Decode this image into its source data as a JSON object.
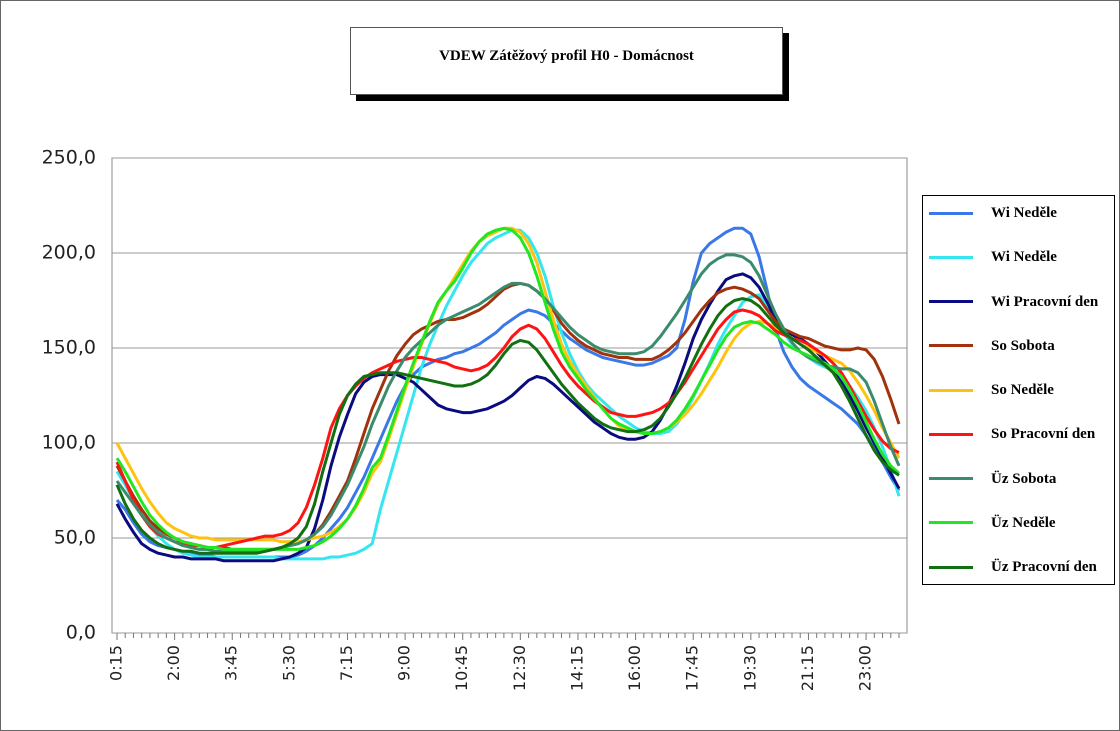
{
  "chart_data": {
    "type": "line",
    "title": "VDEW Zátěžový profil H0 - Domácnost",
    "categories": [
      "0:15",
      null,
      null,
      null,
      null,
      null,
      null,
      "2:00",
      null,
      null,
      null,
      null,
      null,
      null,
      "3:45",
      null,
      null,
      null,
      null,
      null,
      null,
      "5:30",
      null,
      null,
      null,
      null,
      null,
      null,
      "7:15",
      null,
      null,
      null,
      null,
      null,
      null,
      "9:00",
      null,
      null,
      null,
      null,
      null,
      null,
      "10:45",
      null,
      null,
      null,
      null,
      null,
      null,
      "12:30",
      null,
      null,
      null,
      null,
      null,
      null,
      "14:15",
      null,
      null,
      null,
      null,
      null,
      null,
      "16:00",
      null,
      null,
      null,
      null,
      null,
      null,
      "17:45",
      null,
      null,
      null,
      null,
      null,
      null,
      "19:30",
      null,
      null,
      null,
      null,
      null,
      null,
      "21:15",
      null,
      null,
      null,
      null,
      null,
      null,
      "23:00",
      null,
      null,
      null,
      null
    ],
    "ylim": [
      0,
      250
    ],
    "yticks": [
      {
        "value": 0,
        "label": "0,0"
      },
      {
        "value": 50,
        "label": "50,0"
      },
      {
        "value": 100,
        "label": "100,0"
      },
      {
        "value": 150,
        "label": "150,0"
      },
      {
        "value": 200,
        "label": "200,0"
      },
      {
        "value": 250,
        "label": "250,0"
      }
    ],
    "grid": true,
    "legend": "right",
    "series": [
      {
        "name": "Wi Neděle",
        "color": "#3b78e7",
        "values": [
          70,
          65,
          58,
          52,
          48,
          46,
          45,
          44,
          43,
          42,
          41,
          41,
          40,
          40,
          40,
          40,
          40,
          40,
          40,
          40,
          40,
          40,
          41,
          43,
          46,
          50,
          55,
          60,
          66,
          74,
          82,
          92,
          102,
          112,
          122,
          130,
          136,
          140,
          142,
          144,
          145,
          147,
          148,
          150,
          152,
          155,
          158,
          162,
          165,
          168,
          170,
          169,
          167,
          163,
          159,
          155,
          152,
          149,
          147,
          145,
          144,
          143,
          142,
          141,
          141,
          142,
          144,
          146,
          150,
          165,
          185,
          200,
          205,
          208,
          211,
          213,
          213,
          210,
          198,
          180,
          160,
          148,
          140,
          134,
          130,
          127,
          124,
          121,
          118,
          114,
          110,
          104,
          97,
          90,
          82,
          75
        ]
      },
      {
        "name": "Wi Neděle",
        "color": "#33e6ef",
        "values": [
          85,
          78,
          70,
          62,
          56,
          51,
          47,
          44,
          42,
          41,
          40,
          40,
          40,
          40,
          40,
          40,
          40,
          40,
          40,
          40,
          39,
          39,
          39,
          39,
          39,
          39,
          40,
          40,
          41,
          42,
          44,
          47,
          65,
          80,
          95,
          110,
          125,
          140,
          152,
          162,
          172,
          180,
          188,
          195,
          200,
          205,
          208,
          210,
          212,
          212,
          208,
          200,
          188,
          172,
          158,
          147,
          138,
          131,
          126,
          122,
          118,
          114,
          111,
          108,
          106,
          105,
          105,
          106,
          110,
          116,
          124,
          133,
          142,
          152,
          160,
          167,
          174,
          177,
          178,
          172,
          165,
          158,
          152,
          148,
          145,
          142,
          140,
          138,
          135,
          130,
          124,
          117,
          108,
          98,
          86,
          72
        ]
      },
      {
        "name": "Wi Pracovní den",
        "color": "#0b0b80",
        "values": [
          68,
          60,
          53,
          47,
          44,
          42,
          41,
          40,
          40,
          39,
          39,
          39,
          39,
          38,
          38,
          38,
          38,
          38,
          38,
          38,
          39,
          40,
          42,
          45,
          55,
          70,
          88,
          103,
          115,
          126,
          132,
          135,
          136,
          136,
          136,
          134,
          132,
          128,
          124,
          120,
          118,
          117,
          116,
          116,
          117,
          118,
          120,
          122,
          125,
          129,
          133,
          135,
          134,
          131,
          127,
          123,
          119,
          115,
          111,
          108,
          105,
          103,
          102,
          102,
          103,
          106,
          112,
          120,
          130,
          142,
          155,
          165,
          173,
          180,
          186,
          188,
          189,
          187,
          182,
          174,
          165,
          160,
          157,
          155,
          152,
          148,
          143,
          138,
          132,
          125,
          117,
          108,
          100,
          92,
          84,
          76
        ]
      },
      {
        "name": "So Sobota",
        "color": "#a0320c",
        "values": [
          88,
          80,
          72,
          65,
          59,
          55,
          52,
          50,
          48,
          47,
          46,
          45,
          45,
          45,
          44,
          44,
          44,
          44,
          44,
          44,
          45,
          46,
          47,
          49,
          52,
          57,
          64,
          72,
          80,
          92,
          105,
          118,
          128,
          138,
          146,
          152,
          157,
          160,
          162,
          164,
          165,
          165,
          166,
          168,
          170,
          173,
          177,
          181,
          183,
          184,
          183,
          180,
          176,
          170,
          163,
          158,
          154,
          151,
          149,
          147,
          146,
          145,
          145,
          144,
          144,
          144,
          146,
          149,
          153,
          158,
          164,
          170,
          175,
          179,
          181,
          182,
          181,
          179,
          176,
          170,
          164,
          160,
          158,
          156,
          155,
          153,
          151,
          150,
          149,
          149,
          150,
          149,
          144,
          135,
          123,
          110
        ]
      },
      {
        "name": "So Neděle",
        "color": "#ffc20e",
        "values": [
          100,
          92,
          84,
          76,
          69,
          63,
          58,
          55,
          53,
          51,
          50,
          50,
          49,
          49,
          49,
          49,
          49,
          49,
          49,
          49,
          48,
          48,
          48,
          49,
          50,
          51,
          53,
          56,
          60,
          66,
          74,
          84,
          90,
          102,
          115,
          128,
          140,
          152,
          163,
          173,
          180,
          187,
          194,
          201,
          206,
          209,
          211,
          213,
          213,
          211,
          205,
          195,
          180,
          165,
          152,
          143,
          136,
          130,
          124,
          118,
          113,
          109,
          107,
          106,
          105,
          105,
          106,
          108,
          111,
          115,
          120,
          126,
          133,
          140,
          148,
          155,
          160,
          163,
          164,
          163,
          161,
          158,
          155,
          152,
          150,
          148,
          146,
          144,
          142,
          138,
          132,
          125,
          117,
          108,
          100,
          92
        ]
      },
      {
        "name": "So Pracovní den",
        "color": "#ff1414",
        "values": [
          90,
          80,
          70,
          62,
          56,
          52,
          50,
          48,
          47,
          46,
          46,
          45,
          45,
          46,
          47,
          48,
          49,
          50,
          51,
          51,
          52,
          54,
          58,
          66,
          78,
          92,
          108,
          118,
          125,
          130,
          134,
          137,
          139,
          141,
          143,
          144,
          145,
          145,
          144,
          143,
          142,
          140,
          139,
          138,
          139,
          141,
          145,
          150,
          156,
          160,
          162,
          160,
          155,
          148,
          141,
          135,
          130,
          126,
          122,
          119,
          116,
          115,
          114,
          114,
          115,
          116,
          118,
          121,
          126,
          132,
          139,
          146,
          153,
          160,
          165,
          169,
          170,
          169,
          167,
          163,
          159,
          157,
          155,
          154,
          152,
          149,
          146,
          142,
          137,
          130,
          122,
          114,
          107,
          101,
          97,
          95
        ]
      },
      {
        "name": "Üz Sobota",
        "color": "#3a8c6c",
        "values": [
          80,
          74,
          68,
          62,
          57,
          53,
          50,
          48,
          46,
          45,
          44,
          44,
          43,
          43,
          43,
          43,
          43,
          43,
          43,
          44,
          45,
          46,
          47,
          49,
          52,
          56,
          62,
          70,
          78,
          88,
          98,
          110,
          120,
          130,
          138,
          145,
          150,
          154,
          158,
          162,
          165,
          167,
          169,
          171,
          173,
          176,
          179,
          182,
          184,
          184,
          183,
          180,
          176,
          171,
          166,
          161,
          157,
          154,
          151,
          149,
          148,
          147,
          147,
          147,
          148,
          151,
          156,
          162,
          168,
          175,
          182,
          189,
          194,
          197,
          199,
          199,
          198,
          195,
          188,
          178,
          168,
          160,
          153,
          148,
          145,
          143,
          141,
          140,
          139,
          139,
          137,
          132,
          122,
          110,
          98,
          88
        ]
      },
      {
        "name": "Üz Neděle",
        "color": "#22e622",
        "values": [
          92,
          85,
          77,
          69,
          62,
          57,
          53,
          50,
          48,
          47,
          46,
          45,
          45,
          44,
          44,
          44,
          44,
          44,
          44,
          44,
          44,
          44,
          44,
          45,
          46,
          48,
          51,
          55,
          60,
          67,
          76,
          87,
          92,
          104,
          117,
          130,
          142,
          153,
          164,
          174,
          180,
          185,
          192,
          200,
          206,
          210,
          212,
          213,
          212,
          208,
          200,
          188,
          174,
          160,
          148,
          140,
          134,
          128,
          123,
          118,
          113,
          110,
          108,
          106,
          105,
          105,
          106,
          108,
          112,
          118,
          125,
          133,
          141,
          149,
          156,
          161,
          163,
          164,
          163,
          160,
          157,
          153,
          150,
          148,
          146,
          144,
          142,
          139,
          135,
          128,
          120,
          111,
          102,
          94,
          88,
          84
        ]
      },
      {
        "name": "Üz Pracovní den",
        "color": "#127012",
        "values": [
          78,
          68,
          60,
          54,
          50,
          47,
          45,
          44,
          43,
          43,
          42,
          42,
          42,
          42,
          42,
          42,
          42,
          42,
          43,
          44,
          45,
          47,
          50,
          56,
          68,
          85,
          100,
          115,
          125,
          131,
          135,
          136,
          137,
          137,
          137,
          136,
          135,
          134,
          133,
          132,
          131,
          130,
          130,
          131,
          133,
          136,
          141,
          147,
          152,
          154,
          153,
          149,
          143,
          137,
          131,
          126,
          121,
          117,
          113,
          110,
          108,
          107,
          106,
          106,
          107,
          109,
          113,
          119,
          126,
          134,
          143,
          152,
          160,
          167,
          172,
          175,
          176,
          175,
          172,
          167,
          162,
          158,
          155,
          152,
          149,
          145,
          141,
          137,
          130,
          122,
          113,
          104,
          96,
          90,
          86,
          83
        ]
      }
    ]
  }
}
